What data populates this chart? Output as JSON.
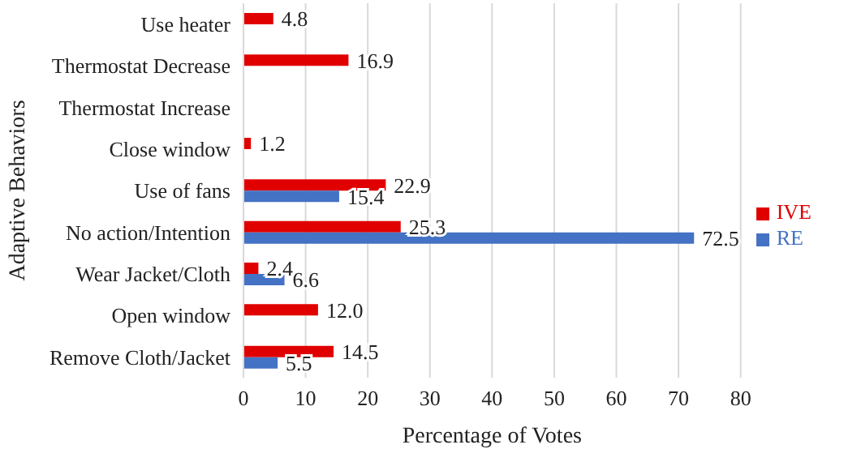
{
  "chart_data": {
    "type": "bar",
    "orientation": "horizontal",
    "xlabel": "Percentage of Votes",
    "ylabel": "Adaptive Behaviors",
    "categories": [
      "Use heater",
      "Thermostat Decrease",
      "Thermostat Increase",
      "Close window",
      "Use of fans",
      "No action/Intention",
      "Wear Jacket/Cloth",
      "Open window",
      "Remove Cloth/Jacket"
    ],
    "series": [
      {
        "name": "IVE",
        "color": "#e00000",
        "values": [
          4.8,
          16.9,
          null,
          1.2,
          22.9,
          25.3,
          2.4,
          12.0,
          14.5
        ],
        "value_labels": [
          "4.8",
          "16.9",
          null,
          "1.2",
          "22.9",
          "25.3",
          "2.4",
          "12.0",
          "14.5"
        ]
      },
      {
        "name": "RE",
        "color": "#4472c4",
        "values": [
          null,
          null,
          null,
          null,
          15.4,
          72.5,
          6.6,
          null,
          5.5
        ],
        "value_labels": [
          null,
          null,
          null,
          null,
          "15.4",
          "72.5",
          "6.6",
          null,
          "5.5"
        ]
      }
    ],
    "xlim": [
      0,
      80
    ],
    "xticks": [
      0,
      10,
      20,
      30,
      40,
      50,
      60,
      70,
      80
    ],
    "grid": "x",
    "legend": "right"
  }
}
